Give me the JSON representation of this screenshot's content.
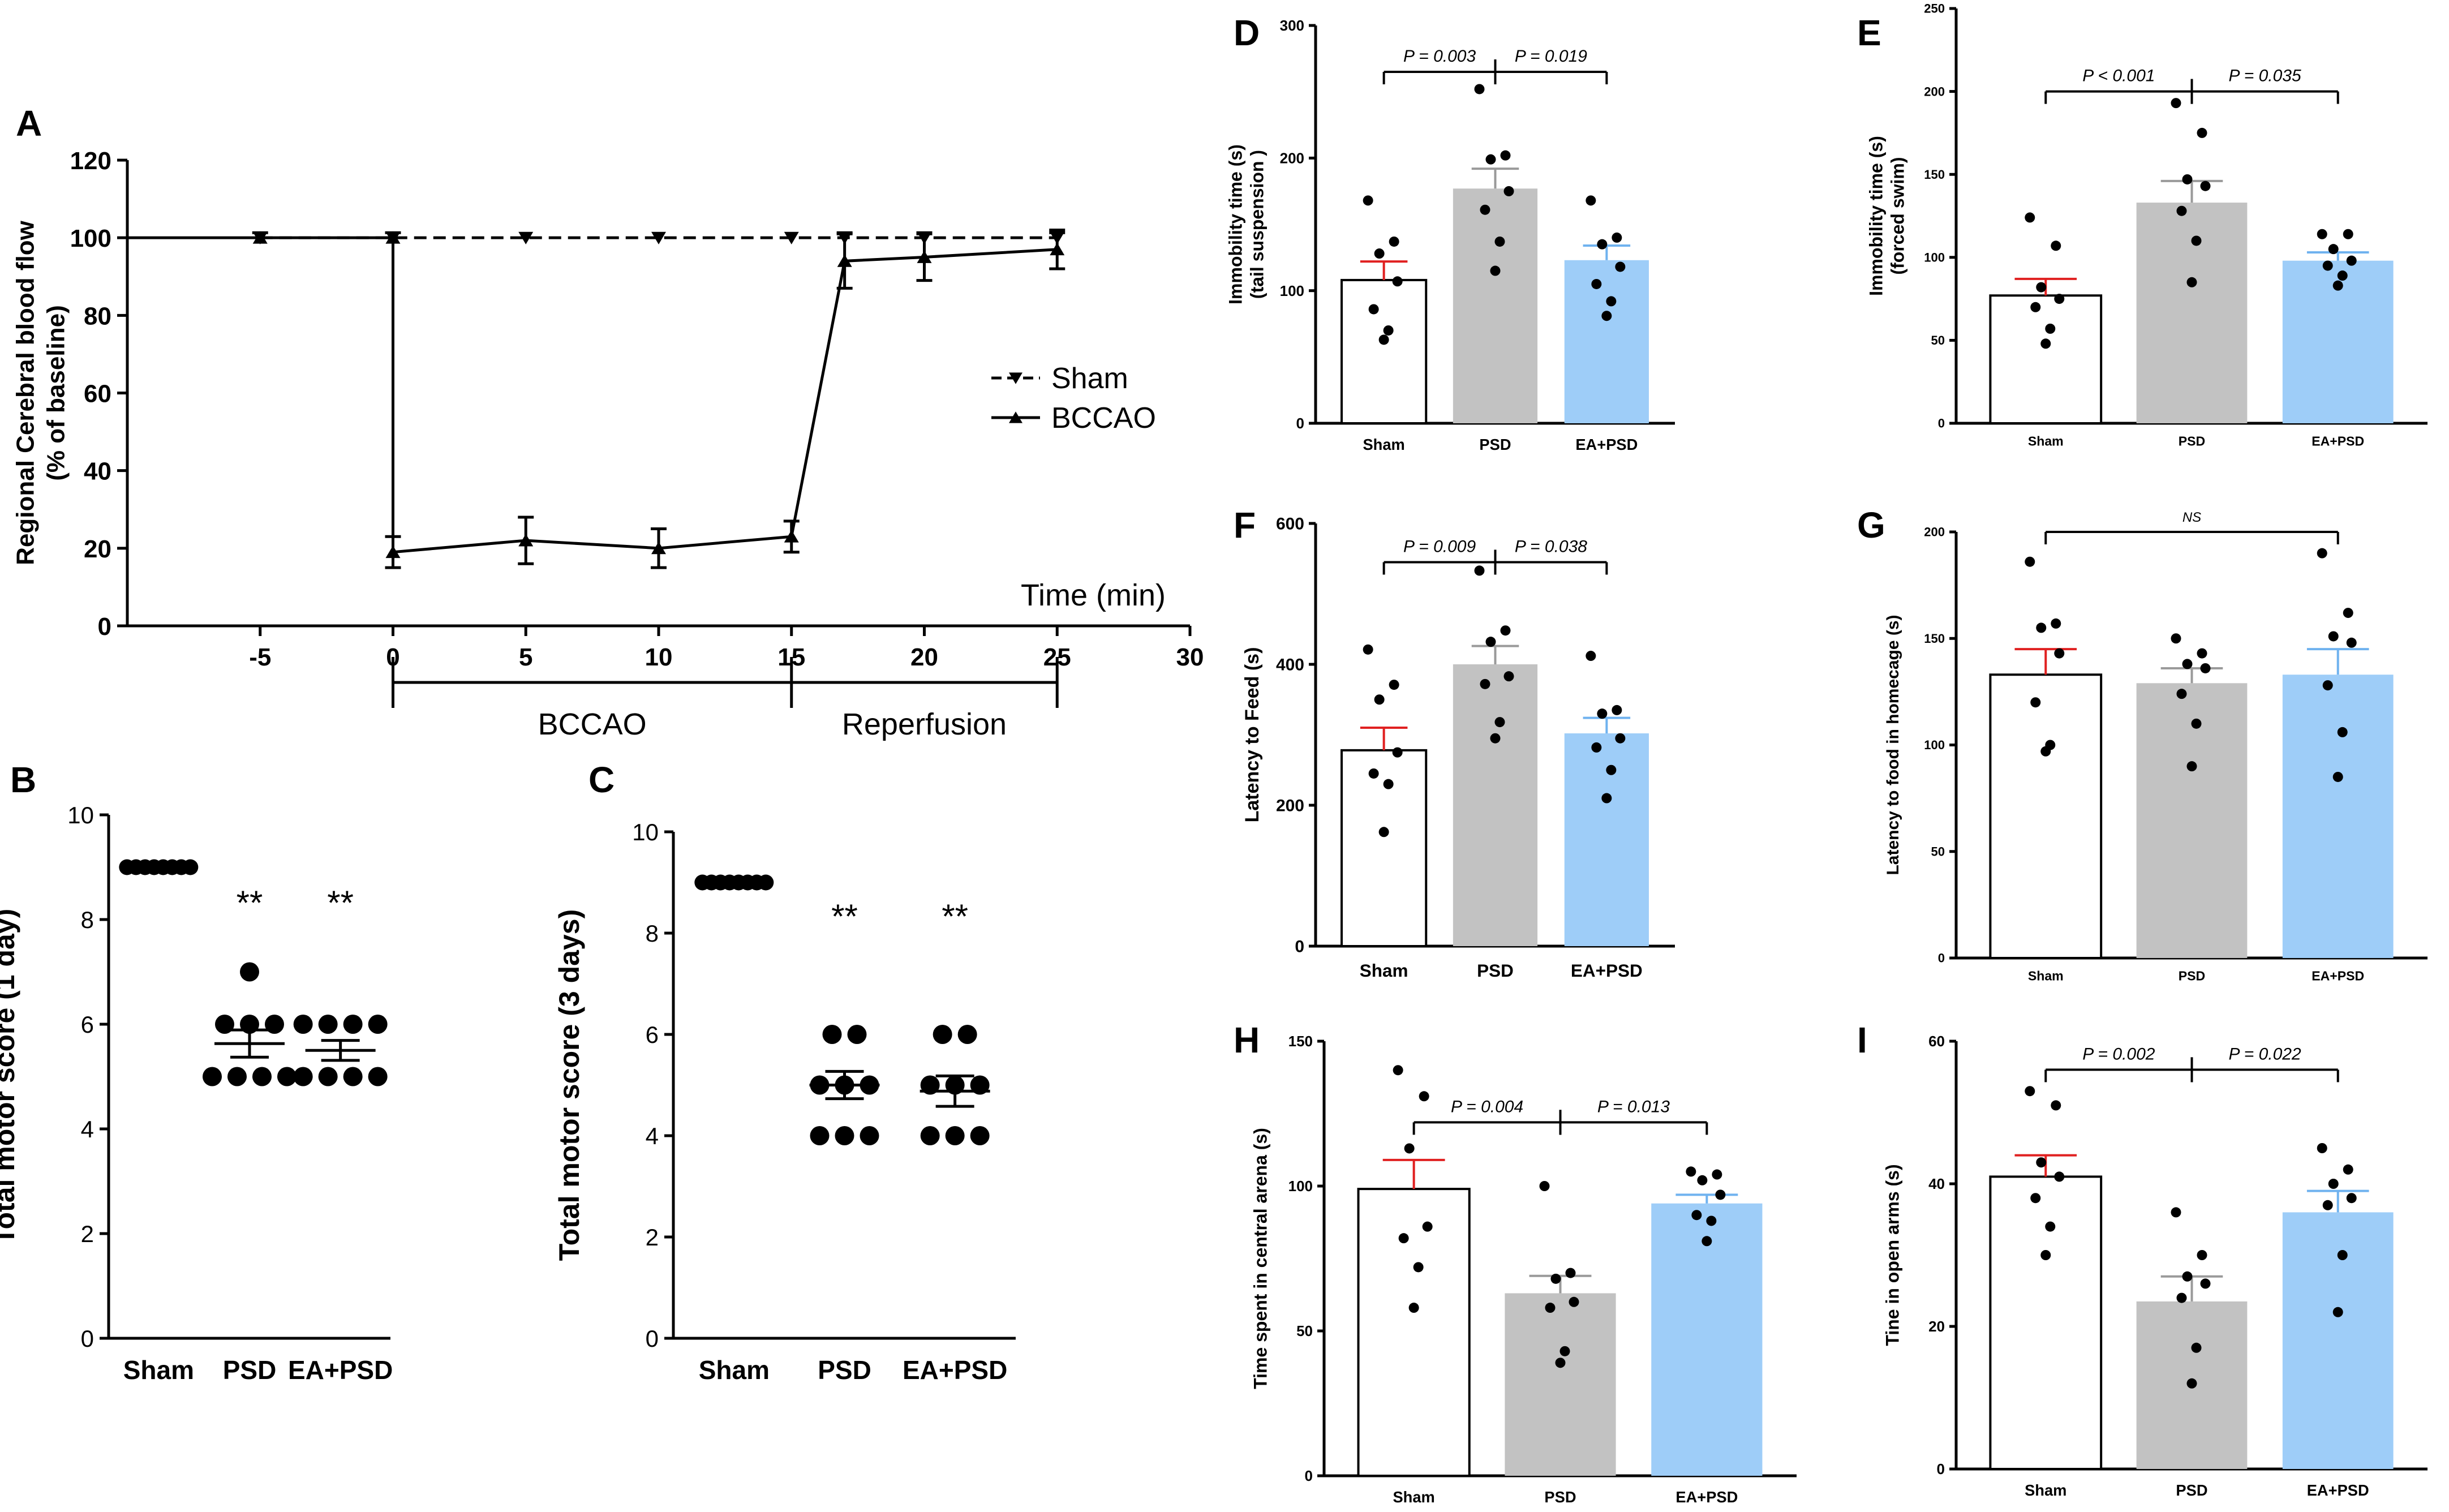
{
  "chart_data": [
    {
      "panel": "A",
      "type": "line",
      "ylabel": "Regional Cerebral blood flow\n(% of baseline)",
      "xlabel": "Time (min)",
      "xlim": [
        -10,
        30
      ],
      "ylim": [
        0,
        120
      ],
      "xticks": [
        -5,
        0,
        5,
        10,
        15,
        20,
        25,
        30
      ],
      "yticks": [
        0,
        20,
        40,
        60,
        80,
        100,
        120
      ],
      "series": [
        {
          "name": "Sham",
          "style": "dashed",
          "marker": "triangle-down",
          "x": [
            -5,
            0,
            5,
            10,
            15,
            17,
            20,
            25
          ],
          "y": [
            100,
            100,
            100,
            100,
            100,
            100,
            100,
            100
          ],
          "err": [
            1,
            1,
            0,
            0,
            0,
            1,
            1,
            1
          ]
        },
        {
          "name": "BCCAO",
          "style": "solid",
          "marker": "triangle-up",
          "x": [
            -10,
            -5,
            0,
            0,
            5,
            10,
            15,
            17,
            20,
            25
          ],
          "y": [
            100,
            100,
            100,
            19,
            22,
            20,
            23,
            94,
            95,
            97
          ],
          "err": [
            0,
            1,
            1,
            4,
            6,
            5,
            4,
            7,
            6,
            5
          ]
        }
      ],
      "phases": [
        {
          "label": "BCCAO",
          "from": 0,
          "to": 15
        },
        {
          "label": "Reperfusion",
          "from": 15,
          "to": 25
        }
      ]
    },
    {
      "panel": "B",
      "type": "scatter",
      "ylabel": "Total motor score   (1 day)",
      "ylim": [
        0,
        10
      ],
      "yticks": [
        0,
        2,
        4,
        6,
        8,
        10
      ],
      "categories": [
        "Sham",
        "PSD",
        "EA+PSD"
      ],
      "points": [
        [
          9,
          9,
          9,
          9,
          9,
          9,
          9,
          9
        ],
        [
          7,
          6,
          6,
          6,
          5,
          5,
          5,
          5
        ],
        [
          6,
          6,
          6,
          6,
          5,
          5,
          5,
          5
        ]
      ],
      "means": [
        9,
        5.63,
        5.5
      ],
      "sem": [
        0,
        0.26,
        0.19
      ],
      "annotations": [
        "",
        "**",
        "**"
      ]
    },
    {
      "panel": "C",
      "type": "scatter",
      "ylabel": "Total motor score   (3 days)",
      "ylim": [
        0,
        10
      ],
      "yticks": [
        0,
        2,
        4,
        6,
        8,
        10
      ],
      "categories": [
        "Sham",
        "PSD",
        "EA+PSD"
      ],
      "points": [
        [
          9,
          9,
          9,
          9,
          9,
          9,
          9,
          9
        ],
        [
          6,
          6,
          5,
          5,
          5,
          4,
          4,
          4
        ],
        [
          6,
          6,
          5,
          5,
          5,
          4,
          4,
          4
        ]
      ],
      "means": [
        9,
        5.0,
        4.88
      ],
      "sem": [
        0,
        0.27,
        0.3
      ],
      "annotations": [
        "",
        "**",
        "**"
      ]
    },
    {
      "panel": "D",
      "type": "bar",
      "ylabel": "Immobility time (s)\n(tail suspension )",
      "ylim": [
        0,
        300
      ],
      "yticks": [
        0,
        100,
        200,
        300
      ],
      "categories": [
        "Sham",
        "PSD",
        "EA+PSD"
      ],
      "values": [
        108,
        177,
        123
      ],
      "sem": [
        14,
        15,
        11
      ],
      "points": [
        [
          168,
          137,
          128,
          107,
          86,
          70,
          63
        ],
        [
          252,
          202,
          199,
          175,
          161,
          137,
          115
        ],
        [
          168,
          140,
          135,
          118,
          105,
          92,
          81
        ]
      ],
      "comparisons": [
        {
          "label": "P = 0.003",
          "from": 0,
          "to": 1,
          "y": 265
        },
        {
          "label": "P = 0.019",
          "from": 1,
          "to": 2,
          "y": 265
        }
      ]
    },
    {
      "panel": "E",
      "type": "bar",
      "ylabel": "Immobility time (s)\n(forced swim)",
      "ylim": [
        0,
        250
      ],
      "yticks": [
        0,
        50,
        100,
        150,
        200,
        250
      ],
      "categories": [
        "Sham",
        "PSD",
        "EA+PSD"
      ],
      "values": [
        77,
        133,
        98
      ],
      "sem": [
        10,
        13,
        5
      ],
      "points": [
        [
          124,
          107,
          82,
          75,
          70,
          57,
          48
        ],
        [
          193,
          175,
          147,
          143,
          128,
          110,
          85
        ],
        [
          114,
          114,
          105,
          98,
          95,
          89,
          83
        ]
      ],
      "comparisons": [
        {
          "label": "P < 0.001",
          "from": 0,
          "to": 1,
          "y": 200
        },
        {
          "label": "P = 0.035",
          "from": 1,
          "to": 2,
          "y": 200
        }
      ]
    },
    {
      "panel": "F",
      "type": "bar",
      "ylabel": "Latency to Feed (s)",
      "ylim": [
        0,
        600
      ],
      "yticks": [
        0,
        200,
        400,
        600
      ],
      "categories": [
        "Sham",
        "PSD",
        "EA+PSD"
      ],
      "values": [
        278,
        400,
        302
      ],
      "sem": [
        32,
        26,
        22
      ],
      "points": [
        [
          421,
          371,
          350,
          275,
          245,
          230,
          162
        ],
        [
          533,
          448,
          432,
          383,
          372,
          318,
          295
        ],
        [
          412,
          335,
          330,
          295,
          282,
          250,
          210
        ]
      ],
      "comparisons": [
        {
          "label": "P = 0.009",
          "from": 0,
          "to": 1,
          "y": 545
        },
        {
          "label": "P = 0.038",
          "from": 1,
          "to": 2,
          "y": 545
        }
      ]
    },
    {
      "panel": "G",
      "type": "bar",
      "ylabel": "Latency to food in homecage (s)",
      "ylim": [
        0,
        200
      ],
      "yticks": [
        0,
        50,
        100,
        150,
        200
      ],
      "categories": [
        "Sham",
        "PSD",
        "EA+PSD"
      ],
      "values": [
        133,
        129,
        133
      ],
      "sem": [
        12,
        7,
        12
      ],
      "points": [
        [
          186,
          157,
          155,
          143,
          120,
          100,
          97
        ],
        [
          150,
          143,
          138,
          136,
          124,
          110,
          90
        ],
        [
          190,
          162,
          151,
          148,
          128,
          106,
          85
        ]
      ],
      "comparisons": [
        {
          "label": "NS",
          "from": 0,
          "to": 2,
          "y": 200
        }
      ]
    },
    {
      "panel": "H",
      "type": "bar",
      "ylabel": "Time spent in central arena (s)",
      "ylim": [
        0,
        150
      ],
      "yticks": [
        0,
        50,
        100,
        150
      ],
      "categories": [
        "Sham",
        "PSD",
        "EA+PSD"
      ],
      "values": [
        99,
        63,
        94
      ],
      "sem": [
        10,
        6,
        3
      ],
      "points": [
        [
          140,
          131,
          113,
          86,
          82,
          72,
          58
        ],
        [
          100,
          70,
          68,
          60,
          58,
          43,
          39
        ],
        [
          105,
          104,
          102,
          97,
          90,
          88,
          81
        ]
      ],
      "comparisons": [
        {
          "label": "P = 0.004",
          "from": 0,
          "to": 1,
          "y": 122
        },
        {
          "label": "P = 0.013",
          "from": 1,
          "to": 2,
          "y": 122
        }
      ]
    },
    {
      "panel": "I",
      "type": "bar",
      "ylabel": "Tine in open arms (s)",
      "ylim": [
        0,
        60
      ],
      "yticks": [
        0,
        20,
        40,
        60
      ],
      "categories": [
        "Sham",
        "PSD",
        "EA+PSD"
      ],
      "values": [
        41,
        23.5,
        36
      ],
      "sem": [
        3,
        3.5,
        3
      ],
      "points": [
        [
          53,
          51,
          43,
          41,
          38,
          34,
          30
        ],
        [
          36,
          30,
          27,
          26,
          24,
          17,
          12
        ],
        [
          45,
          42,
          40,
          38,
          37,
          30,
          22
        ]
      ],
      "comparisons": [
        {
          "label": "P = 0.002",
          "from": 0,
          "to": 1,
          "y": 56
        },
        {
          "label": "P = 0.022",
          "from": 1,
          "to": 2,
          "y": 56
        }
      ]
    }
  ],
  "colors": {
    "axis": "#000000",
    "sham_bar": "#ffffff",
    "psd_bar": "#c2c2c2",
    "ea_bar": "#9ecdf8",
    "sham_err": "#e02020",
    "psd_err": "#9a9a9a",
    "ea_err": "#6fb2ef"
  }
}
